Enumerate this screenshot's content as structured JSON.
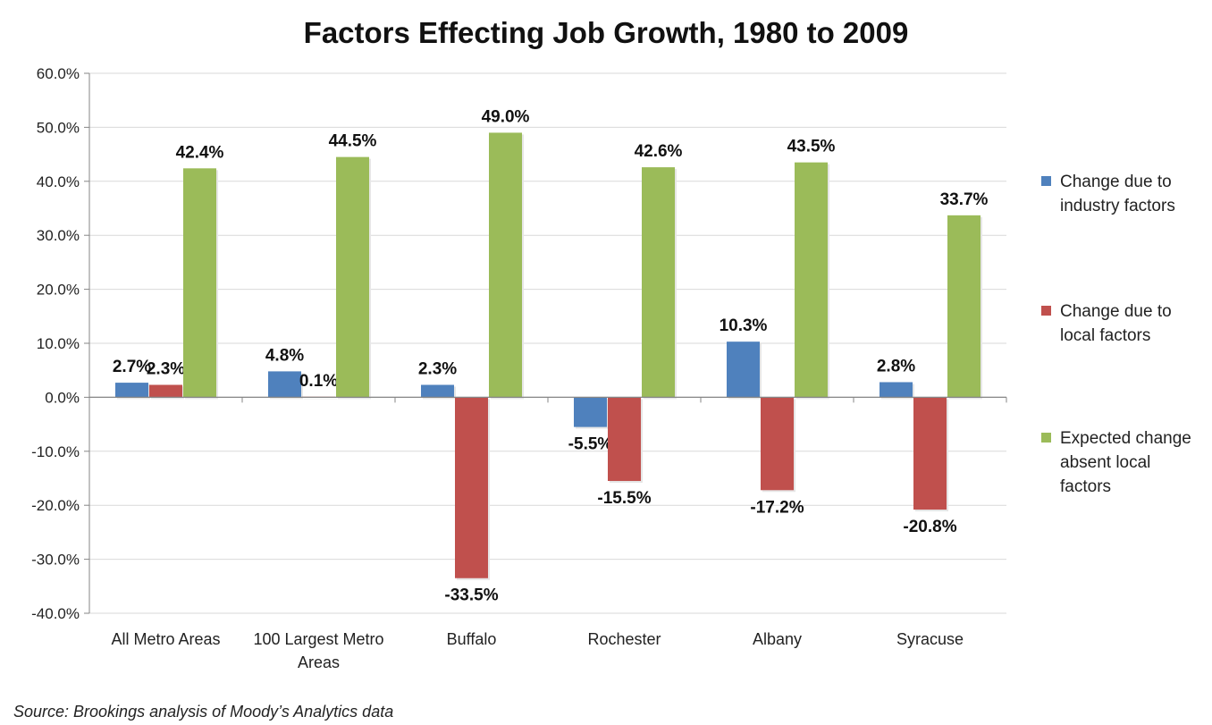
{
  "chart_data": {
    "type": "bar",
    "title": "Factors Effecting Job Growth, 1980 to 2009",
    "xlabel": "",
    "ylabel": "",
    "categories": [
      "All Metro Areas",
      "100 Largest Metro Areas",
      "Buffalo",
      "Rochester",
      "Albany",
      "Syracuse"
    ],
    "series": [
      {
        "name": "Change due to industry factors",
        "color": "#4F81BD",
        "values": [
          2.7,
          4.8,
          2.3,
          -5.5,
          10.3,
          2.8
        ],
        "labels": [
          "2.7%",
          "4.8%",
          "2.3%",
          "-5.5%",
          "10.3%",
          "2.8%"
        ]
      },
      {
        "name": "Change due to local factors",
        "color": "#C0504D",
        "values": [
          2.3,
          0.1,
          -33.5,
          -15.5,
          -17.2,
          -20.8
        ],
        "labels": [
          "2.3%",
          "0.1%",
          "-33.5%",
          "-15.5%",
          "-17.2%",
          "-20.8%"
        ]
      },
      {
        "name": "Expected change absent local factors",
        "color": "#9BBB59",
        "values": [
          42.4,
          44.5,
          49.0,
          42.6,
          43.5,
          33.7
        ],
        "labels": [
          "42.4%",
          "44.5%",
          "49.0%",
          "42.6%",
          "43.5%",
          "33.7%"
        ]
      }
    ],
    "ylim": [
      -40,
      60
    ],
    "yticks": [
      60,
      50,
      40,
      30,
      20,
      10,
      0,
      -10,
      -20,
      -30,
      -40
    ],
    "ytick_labels": [
      "60.0%",
      "50.0%",
      "40.0%",
      "30.0%",
      "20.0%",
      "10.0%",
      "0.0%",
      "-10.0%",
      "-20.0%",
      "-30.0%",
      "-40.0%"
    ],
    "grid": true,
    "legend": "right"
  },
  "legend": {
    "items": [
      {
        "lines": [
          "Change due to",
          "industry factors"
        ],
        "color": "#4F81BD"
      },
      {
        "lines": [
          "Change due to",
          "local factors"
        ],
        "color": "#C0504D"
      },
      {
        "lines": [
          "Expected change",
          "absent local",
          "factors"
        ],
        "color": "#9BBB59"
      }
    ]
  },
  "source": "Source: Brookings analysis of Moody’s Analytics data"
}
